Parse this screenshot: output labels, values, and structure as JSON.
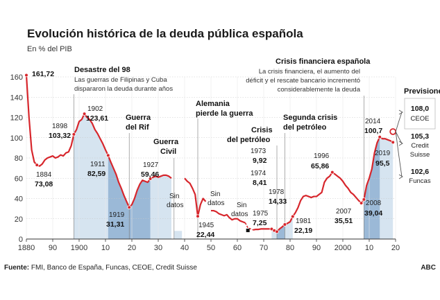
{
  "title": "Evolución histórica de la deuda pública española",
  "subtitle": "En % del PIB",
  "source_label": "Fuente:",
  "source_text": " FMI, Banco de España, Funcas, CEOE, Credit Suisse",
  "credit": "ABC",
  "colors": {
    "line": "#d7262c",
    "shade_light": "#d6e4f0",
    "shade_dark": "#9bb9d7",
    "grid": "#c8c8c8",
    "divider": "#e8e8e8"
  },
  "chart_data": {
    "type": "line",
    "xlim": [
      1880,
      2020
    ],
    "ylim": [
      0,
      160
    ],
    "yticks": [
      0,
      20,
      40,
      60,
      80,
      100,
      120,
      140,
      160
    ],
    "xticks": [
      {
        "v": 1880,
        "t": "1880"
      },
      {
        "v": 1890,
        "t": "90"
      },
      {
        "v": 1900,
        "t": "1900"
      },
      {
        "v": 1910,
        "t": "10"
      },
      {
        "v": 1920,
        "t": "20"
      },
      {
        "v": 1930,
        "t": "30"
      },
      {
        "v": 1940,
        "t": "40"
      },
      {
        "v": 1950,
        "t": "50"
      },
      {
        "v": 1960,
        "t": "60"
      },
      {
        "v": 1970,
        "t": "70"
      },
      {
        "v": 1980,
        "t": "80"
      },
      {
        "v": 1990,
        "t": "90"
      },
      {
        "v": 2000,
        "t": "2000"
      },
      {
        "v": 2010,
        "t": "10"
      },
      {
        "v": 2020,
        "t": "20"
      }
    ],
    "segments": [
      [
        [
          1880,
          161.72
        ],
        [
          1881,
          120
        ],
        [
          1882,
          88
        ],
        [
          1883,
          76
        ],
        [
          1884,
          73.08
        ],
        [
          1885,
          72
        ],
        [
          1886,
          74
        ],
        [
          1887,
          78
        ],
        [
          1888,
          80
        ],
        [
          1889,
          81
        ],
        [
          1890,
          82
        ],
        [
          1891,
          80
        ],
        [
          1892,
          81
        ],
        [
          1893,
          83
        ],
        [
          1894,
          82
        ],
        [
          1895,
          85
        ],
        [
          1896,
          86
        ],
        [
          1897,
          92
        ],
        [
          1898,
          103.32
        ],
        [
          1899,
          108
        ],
        [
          1900,
          116
        ],
        [
          1901,
          118
        ],
        [
          1902,
          123.61
        ],
        [
          1903,
          120
        ],
        [
          1904,
          118
        ],
        [
          1905,
          114
        ],
        [
          1906,
          108
        ],
        [
          1907,
          104
        ],
        [
          1908,
          99
        ],
        [
          1909,
          94
        ],
        [
          1910,
          88
        ],
        [
          1911,
          82.59
        ],
        [
          1912,
          76
        ],
        [
          1913,
          70
        ],
        [
          1914,
          64
        ],
        [
          1915,
          56
        ],
        [
          1916,
          50
        ],
        [
          1917,
          43
        ],
        [
          1918,
          37
        ],
        [
          1919,
          31.31
        ],
        [
          1920,
          34
        ],
        [
          1921,
          40
        ],
        [
          1922,
          48
        ],
        [
          1923,
          54
        ],
        [
          1924,
          58
        ],
        [
          1925,
          57
        ],
        [
          1926,
          56
        ],
        [
          1927,
          59.46
        ],
        [
          1928,
          61
        ],
        [
          1929,
          62
        ],
        [
          1930,
          61
        ],
        [
          1931,
          62
        ],
        [
          1932,
          63
        ],
        [
          1933,
          63
        ],
        [
          1934,
          62
        ],
        [
          1935,
          60
        ]
      ],
      [
        [
          1940,
          60
        ],
        [
          1941,
          57
        ],
        [
          1942,
          55
        ],
        [
          1943,
          50
        ],
        [
          1944,
          44
        ],
        [
          1945,
          22.44
        ],
        [
          1946,
          34
        ],
        [
          1947,
          40
        ],
        [
          1948,
          37
        ]
      ],
      [
        [
          1950,
          28
        ],
        [
          1951,
          28
        ],
        [
          1952,
          27
        ],
        [
          1953,
          25
        ],
        [
          1954,
          24
        ],
        [
          1955,
          23
        ],
        [
          1956,
          24
        ],
        [
          1957,
          21
        ],
        [
          1958,
          19
        ],
        [
          1959,
          20
        ],
        [
          1960,
          20
        ],
        [
          1961,
          18
        ],
        [
          1962,
          17
        ],
        [
          1963,
          16
        ]
      ],
      [
        [
          1966,
          9
        ],
        [
          1967,
          9.5
        ],
        [
          1968,
          9.5
        ],
        [
          1969,
          10
        ],
        [
          1970,
          10
        ],
        [
          1971,
          10
        ],
        [
          1972,
          10
        ],
        [
          1973,
          9.92
        ],
        [
          1974,
          8.41
        ],
        [
          1975,
          7.25
        ],
        [
          1976,
          10
        ],
        [
          1977,
          12
        ],
        [
          1978,
          14.33
        ],
        [
          1979,
          15.5
        ],
        [
          1980,
          17
        ],
        [
          1981,
          22.19
        ],
        [
          1982,
          26
        ],
        [
          1983,
          31
        ],
        [
          1984,
          38
        ],
        [
          1985,
          42
        ],
        [
          1986,
          43
        ],
        [
          1987,
          42
        ],
        [
          1988,
          41
        ],
        [
          1989,
          42
        ],
        [
          1990,
          42
        ],
        [
          1991,
          44
        ],
        [
          1992,
          46
        ],
        [
          1993,
          56
        ],
        [
          1994,
          60
        ],
        [
          1995,
          62
        ],
        [
          1996,
          65.86
        ],
        [
          1997,
          64
        ],
        [
          1998,
          62
        ],
        [
          1999,
          60
        ],
        [
          2000,
          57
        ],
        [
          2001,
          53
        ],
        [
          2002,
          50
        ],
        [
          2003,
          46
        ],
        [
          2004,
          44
        ],
        [
          2005,
          41
        ],
        [
          2006,
          38
        ],
        [
          2007,
          35.51
        ],
        [
          2008,
          39.04
        ],
        [
          2009,
          52.8
        ],
        [
          2010,
          60
        ],
        [
          2011,
          69
        ],
        [
          2012,
          85
        ],
        [
          2013,
          95
        ],
        [
          2014,
          100.7
        ],
        [
          2015,
          99
        ],
        [
          2016,
          99
        ],
        [
          2017,
          98
        ],
        [
          2018,
          97
        ],
        [
          2019,
          95.5
        ]
      ]
    ],
    "dashed": [
      [
        1963,
        16
      ],
      [
        1964,
        11
      ],
      [
        1966,
        9
      ]
    ],
    "shaded_light": [
      [
        1898,
        1911
      ],
      [
        1927,
        1935
      ],
      [
        1973,
        1981
      ],
      [
        2008,
        2019
      ]
    ],
    "shaded_dark": [
      [
        1911,
        1919
      ],
      [
        1919,
        1927
      ],
      [
        1936,
        1939
      ],
      [
        1975,
        1978
      ],
      [
        2008,
        2014
      ]
    ],
    "forecast": {
      "from": [
        2019,
        106
      ],
      "points": [
        {
          "label": "CEOE",
          "value": "108,0"
        },
        {
          "label": "Credit Suisse",
          "value": "105,3"
        },
        {
          "label": "Funcas",
          "value": "102,6"
        }
      ],
      "title": "Previsiones"
    },
    "annotations": [
      {
        "id": "a1880",
        "text": "161,72"
      },
      {
        "id": "a1884",
        "year": "1884",
        "text": "73,08"
      },
      {
        "id": "a1898",
        "year": "1898",
        "text": "103,32"
      },
      {
        "id": "a1902",
        "year": "1902",
        "text": "123,61"
      },
      {
        "id": "a1911",
        "year": "1911",
        "text": "82,59"
      },
      {
        "id": "a1919",
        "year": "1919",
        "text": "31,31"
      },
      {
        "id": "a1927",
        "year": "1927",
        "text": "59,46"
      },
      {
        "id": "a1945",
        "year": "1945",
        "text": "22,44"
      },
      {
        "id": "a1973",
        "year": "1973",
        "text": "9,92"
      },
      {
        "id": "a1974",
        "year": "1974",
        "text": "8,41"
      },
      {
        "id": "a1975",
        "year": "1975",
        "text": "7,25"
      },
      {
        "id": "a1978",
        "year": "1978",
        "text": "14,33"
      },
      {
        "id": "a1981",
        "year": "1981",
        "text": "22,19"
      },
      {
        "id": "a1996",
        "year": "1996",
        "text": "65,86"
      },
      {
        "id": "a2007",
        "year": "2007",
        "text": "35,51"
      },
      {
        "id": "a2008",
        "year": "2008",
        "text": "39,04"
      },
      {
        "id": "a2014",
        "year": "2014",
        "text": "100,7"
      },
      {
        "id": "a2019",
        "year": "2019",
        "text": "95,5"
      }
    ],
    "events": {
      "desastre": {
        "title": "Desastre del 98",
        "line1": "Las guerras de Filipinas y Cuba",
        "line2": "dispararon la deuda durante años"
      },
      "rif": {
        "line1": "Guerra",
        "line2": "del Rif"
      },
      "civil": {
        "line1": "Guerra",
        "line2": "Civil"
      },
      "alemania": {
        "line1": "Alemania",
        "line2": "pierde la guerra"
      },
      "petroleo1": {
        "line1": "Crisis",
        "line2": "del petróleo"
      },
      "petroleo2": {
        "line1": "Segunda crisis",
        "line2": "del petróleo"
      },
      "financiera": {
        "title": "Crisis financiera española",
        "line1": "La crisis financiera, el aumento del",
        "line2": "déficit y el rescate bancario incrementó",
        "line3": "considerablemente la deuda"
      }
    },
    "sin_datos": [
      {
        "line1": "Sin",
        "line2": "datos"
      },
      {
        "line1": "Sin",
        "line2": "datos"
      },
      {
        "line1": "Sin",
        "line2": "datos"
      }
    ]
  }
}
